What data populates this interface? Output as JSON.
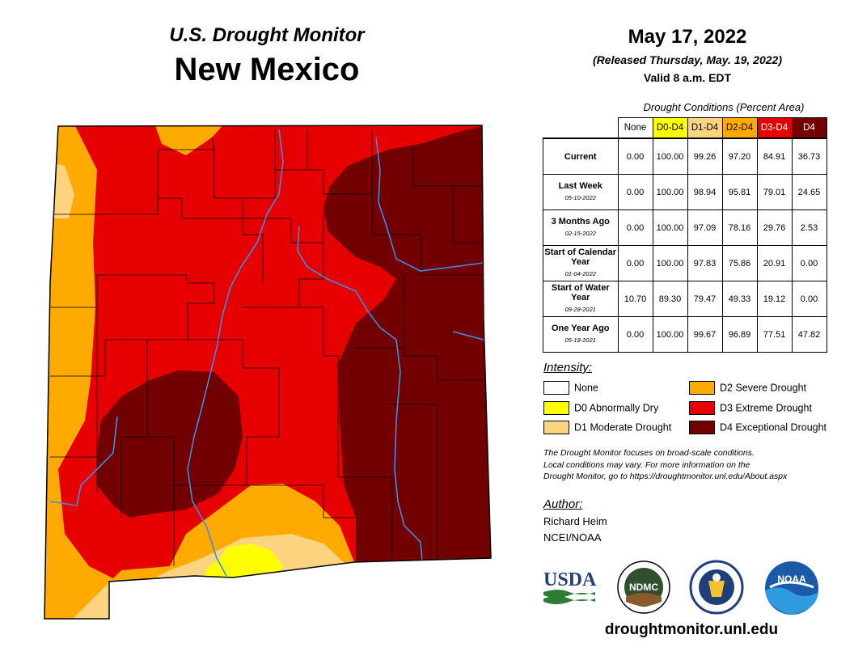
{
  "header": {
    "subtitle": "U.S. Drought Monitor",
    "title": "New Mexico",
    "date": "May 17, 2022",
    "released": "(Released Thursday, May. 19, 2022)",
    "valid": "Valid 8 a.m. EDT"
  },
  "table": {
    "caption": "Drought Conditions (Percent Area)",
    "columns": [
      {
        "label": "None",
        "color": "#ffffff",
        "text_color": "#000000"
      },
      {
        "label": "D0-D4",
        "color": "#ffff00",
        "text_color": "#000000"
      },
      {
        "label": "D1-D4",
        "color": "#fcd37f",
        "text_color": "#000000"
      },
      {
        "label": "D2-D4",
        "color": "#ffaa00",
        "text_color": "#000000"
      },
      {
        "label": "D3-D4",
        "color": "#e60000",
        "text_color": "#ffffff"
      },
      {
        "label": "D4",
        "color": "#730000",
        "text_color": "#ffffff"
      }
    ],
    "rows": [
      {
        "label": "Current",
        "date": "",
        "values": [
          "0.00",
          "100.00",
          "99.26",
          "97.20",
          "84.91",
          "36.73"
        ]
      },
      {
        "label": "Last Week",
        "date": "05-10-2022",
        "values": [
          "0.00",
          "100.00",
          "98.94",
          "95.81",
          "79.01",
          "24.65"
        ]
      },
      {
        "label": "3 Months Ago",
        "date": "02-15-2022",
        "values": [
          "0.00",
          "100.00",
          "97.09",
          "78.16",
          "29.76",
          "2.53"
        ]
      },
      {
        "label": "Start of Calendar Year",
        "date": "01-04-2022",
        "values": [
          "0.00",
          "100.00",
          "97.83",
          "75.86",
          "20.91",
          "0.00"
        ]
      },
      {
        "label": "Start of Water Year",
        "date": "09-28-2021",
        "values": [
          "10.70",
          "89.30",
          "79.47",
          "49.33",
          "19.12",
          "0.00"
        ]
      },
      {
        "label": "One Year Ago",
        "date": "05-18-2021",
        "values": [
          "0.00",
          "100.00",
          "99.67",
          "96.89",
          "77.51",
          "47.82"
        ]
      }
    ]
  },
  "legend": {
    "title": "Intensity:",
    "items": [
      {
        "label": "None",
        "color": "#ffffff"
      },
      {
        "label": "D0 Abnormally Dry",
        "color": "#ffff00"
      },
      {
        "label": "D1 Moderate Drought",
        "color": "#fcd37f"
      },
      {
        "label": "D2 Severe Drought",
        "color": "#ffaa00"
      },
      {
        "label": "D3 Extreme Drought",
        "color": "#e60000"
      },
      {
        "label": "D4 Exceptional Drought",
        "color": "#730000"
      }
    ]
  },
  "note": {
    "line1": "The Drought Monitor focuses on broad-scale conditions.",
    "line2": "Local conditions may vary. For more information on the",
    "line3": "Drought Monitor, go to https://droughtmonitor.unl.edu/About.aspx"
  },
  "author": {
    "title": "Author:",
    "name": "Richard Heim",
    "org": "NCEI/NOAA"
  },
  "logos": {
    "usda": "USDA",
    "ndmc": "NDMC",
    "noaa": "NOAA"
  },
  "website": "droughtmonitor.unl.edu",
  "map": {
    "colors": {
      "d0": "#ffff00",
      "d1": "#fcd37f",
      "d2": "#ffaa00",
      "d3": "#e60000",
      "d4": "#730000",
      "rivers": "#3a8ee6",
      "counties": "#000000"
    }
  }
}
